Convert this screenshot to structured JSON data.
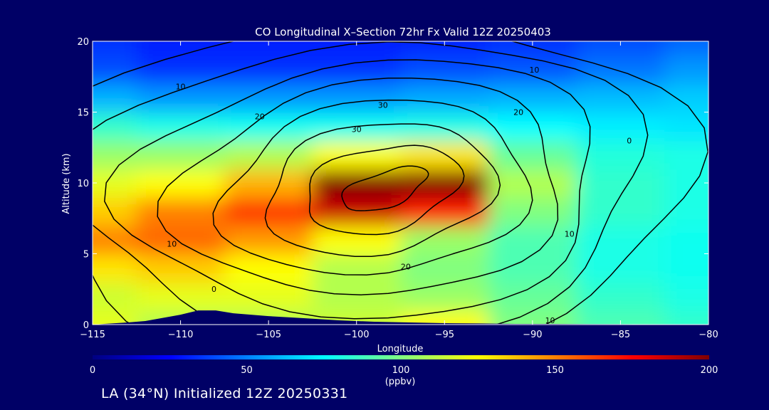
{
  "caption": "LA (34°N) Initialized 12Z 20250331",
  "chart_data": {
    "type": "heatmap",
    "title": "CO Longitudinal X–Section 72hr  Fx Valid 12Z 20250403",
    "xlabel": "Longitude",
    "ylabel": "Altitude (km)",
    "xlim": [
      -115,
      -80
    ],
    "ylim": [
      0,
      20
    ],
    "x_ticks": [
      -115,
      -110,
      -105,
      -100,
      -95,
      -90,
      -85,
      -80
    ],
    "x_tick_labels": [
      "−115",
      "−110",
      "−105",
      "−100",
      "−95",
      "−90",
      "−85",
      "−80"
    ],
    "y_ticks": [
      0,
      5,
      10,
      15,
      20
    ],
    "y_tick_labels": [
      "0",
      "5",
      "10",
      "15",
      "20"
    ],
    "colorbar": {
      "min": 0,
      "max": 200,
      "ticks": [
        0,
        50,
        100,
        150,
        200
      ],
      "tick_labels": [
        "0",
        "50",
        "100",
        "150",
        "200"
      ],
      "unit": "(ppbv)",
      "colors": [
        "#000080",
        "#0000ff",
        "#0080ff",
        "#00ffff",
        "#80ff80",
        "#ffff00",
        "#ff8000",
        "#ff0000",
        "#800000"
      ]
    },
    "field_ppbv": {
      "description_of_grid": "CO concentration (ppbv), rows = altitude km, cols = longitude",
      "lon": [
        -115,
        -110,
        -105,
        -100,
        -95,
        -90,
        -85,
        -80
      ],
      "alt": [
        0,
        2,
        4,
        6,
        8,
        10,
        12,
        14,
        16,
        18,
        20
      ],
      "values": [
        [
          120,
          110,
          110,
          115,
          125,
          100,
          90,
          85
        ],
        [
          115,
          120,
          120,
          110,
          105,
          95,
          85,
          80
        ],
        [
          130,
          135,
          125,
          110,
          100,
          90,
          80,
          78
        ],
        [
          150,
          155,
          145,
          125,
          105,
          90,
          80,
          78
        ],
        [
          135,
          150,
          165,
          185,
          170,
          100,
          85,
          80
        ],
        [
          120,
          125,
          140,
          200,
          200,
          110,
          85,
          80
        ],
        [
          105,
          105,
          110,
          125,
          130,
          95,
          82,
          80
        ],
        [
          85,
          80,
          78,
          78,
          80,
          75,
          72,
          70
        ],
        [
          60,
          55,
          55,
          55,
          58,
          60,
          62,
          65
        ],
        [
          40,
          35,
          35,
          35,
          40,
          42,
          48,
          55
        ],
        [
          35,
          30,
          30,
          30,
          32,
          35,
          40,
          45
        ]
      ]
    },
    "terrain_km": {
      "lon": [
        -115,
        -113,
        -112,
        -110,
        -109,
        -108,
        -107,
        -105,
        -103,
        -101,
        -99,
        -97,
        -95,
        -93,
        -91,
        -89,
        -87,
        -85,
        -83,
        -81,
        -80
      ],
      "alt": [
        0,
        0.15,
        0.25,
        0.7,
        1.0,
        1.0,
        0.8,
        0.6,
        0.45,
        0.3,
        0.2,
        0.15,
        0.1,
        0.08,
        0.05,
        0.05,
        0.04,
        0.03,
        0.02,
        0.02,
        0.02
      ]
    },
    "contour_labels": [
      {
        "text": "10",
        "lon": -110,
        "alt": 16.6
      },
      {
        "text": "20",
        "lon": -105.5,
        "alt": 14.5
      },
      {
        "text": "30",
        "lon": -98.5,
        "alt": 15.3
      },
      {
        "text": "30",
        "lon": -100,
        "alt": 13.6
      },
      {
        "text": "10",
        "lon": -89.9,
        "alt": 17.8
      },
      {
        "text": "20",
        "lon": -90.8,
        "alt": 14.8
      },
      {
        "text": "0",
        "lon": -84.5,
        "alt": 12.8
      },
      {
        "text": "10",
        "lon": -110.5,
        "alt": 5.5
      },
      {
        "text": "20",
        "lon": -97.2,
        "alt": 3.9
      },
      {
        "text": "0",
        "lon": -108.1,
        "alt": 2.3
      },
      {
        "text": "10",
        "lon": -87.9,
        "alt": 6.2
      },
      {
        "text": "10",
        "lon": -89,
        "alt": 0.1
      }
    ]
  }
}
